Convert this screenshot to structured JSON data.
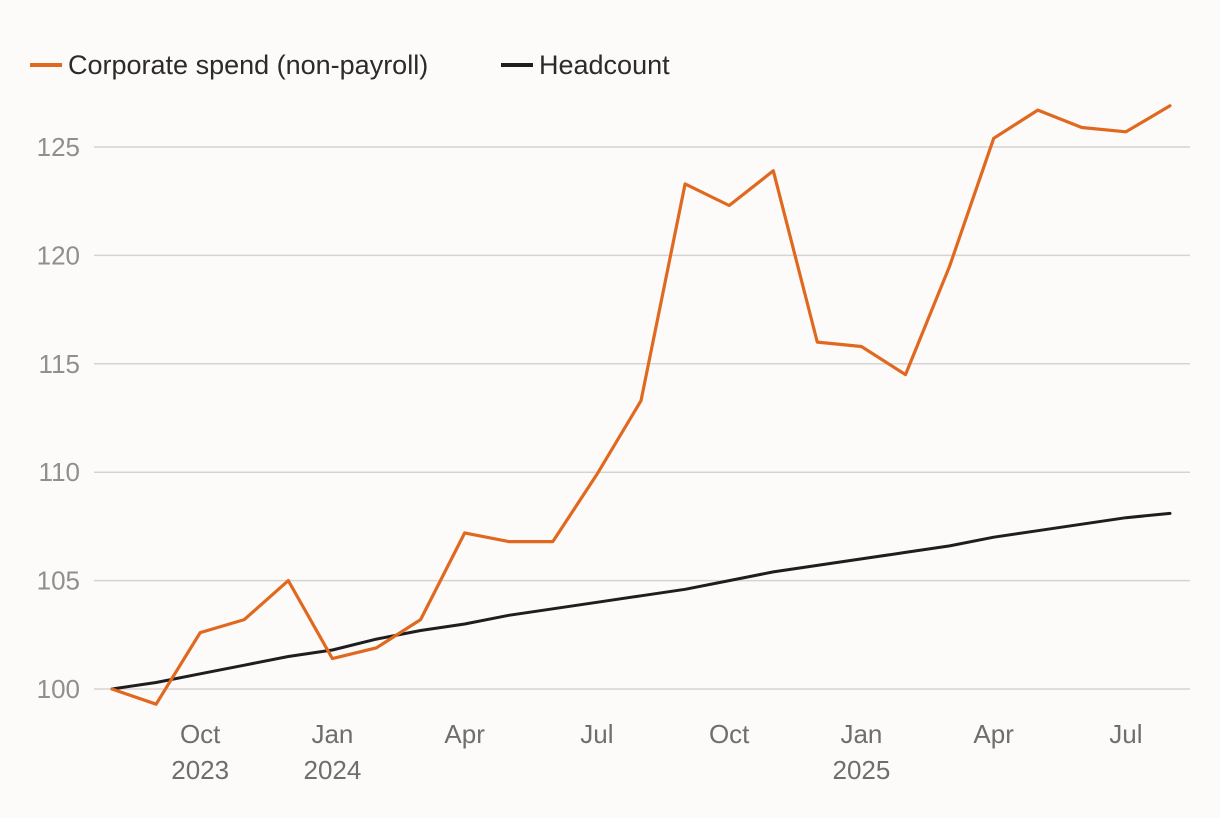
{
  "colors": {
    "background": "#fcfbf9",
    "spend": "#e0691f",
    "headcount": "#1e1e1e",
    "grid": "#d6d4d1"
  },
  "chart_data": {
    "type": "line",
    "title": "",
    "xlabel": "",
    "ylabel": "",
    "ylim": [
      100,
      127
    ],
    "yticks": [
      100,
      105,
      110,
      115,
      120,
      125
    ],
    "grid": "horizontal",
    "legend_position": "top-left",
    "x": [
      "2023-08",
      "2023-09",
      "2023-10",
      "2023-11",
      "2023-12",
      "2024-01",
      "2024-02",
      "2024-03",
      "2024-04",
      "2024-05",
      "2024-06",
      "2024-07",
      "2024-08",
      "2024-09",
      "2024-10",
      "2024-11",
      "2024-12",
      "2025-01",
      "2025-02",
      "2025-03",
      "2025-04",
      "2025-05",
      "2025-06",
      "2025-07",
      "2025-08"
    ],
    "xticks": [
      {
        "x": "2023-10",
        "label": "Oct",
        "year": "2023"
      },
      {
        "x": "2024-01",
        "label": "Jan",
        "year": "2024"
      },
      {
        "x": "2024-04",
        "label": "Apr",
        "year": ""
      },
      {
        "x": "2024-07",
        "label": "Jul",
        "year": ""
      },
      {
        "x": "2024-10",
        "label": "Oct",
        "year": ""
      },
      {
        "x": "2025-01",
        "label": "Jan",
        "year": "2025"
      },
      {
        "x": "2025-04",
        "label": "Apr",
        "year": ""
      },
      {
        "x": "2025-07",
        "label": "Jul",
        "year": ""
      }
    ],
    "series": [
      {
        "name": "Corporate spend (non-payroll)",
        "color": "#e0691f",
        "values": [
          100.0,
          99.3,
          102.6,
          103.2,
          105.0,
          101.4,
          101.9,
          103.2,
          107.2,
          106.8,
          106.8,
          109.9,
          113.3,
          123.3,
          122.3,
          123.9,
          116.0,
          115.8,
          114.5,
          119.5,
          125.4,
          126.7,
          125.9,
          125.7,
          126.9
        ]
      },
      {
        "name": "Headcount",
        "color": "#1e1e1e",
        "values": [
          100.0,
          100.3,
          100.7,
          101.1,
          101.5,
          101.8,
          102.3,
          102.7,
          103.0,
          103.4,
          103.7,
          104.0,
          104.3,
          104.6,
          105.0,
          105.4,
          105.7,
          106.0,
          106.3,
          106.6,
          107.0,
          107.3,
          107.6,
          107.9,
          108.1
        ]
      }
    ]
  }
}
